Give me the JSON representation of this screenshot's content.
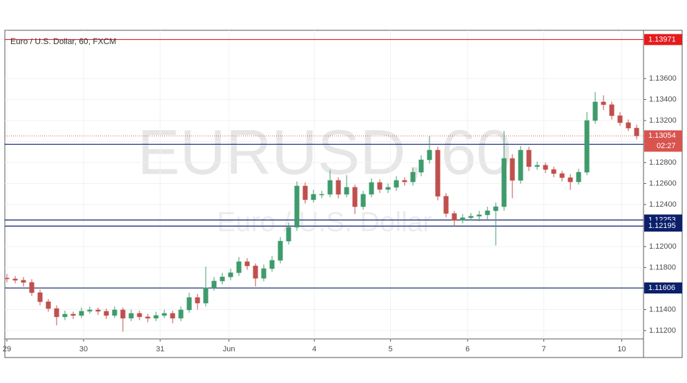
{
  "chart_data": {
    "type": "candlestick",
    "title": "Euro / U.S. Dollar, 60, FXCM",
    "watermark": {
      "symbol": "EURUSD, 60",
      "description": "Euro / U.S. Dollar"
    },
    "x": [
      0,
      1,
      2,
      3,
      4,
      5,
      6,
      7,
      8,
      9,
      10,
      11,
      12,
      13,
      14,
      15,
      16,
      17,
      18,
      19,
      20,
      21,
      22,
      23,
      24,
      25,
      26,
      27,
      28,
      29,
      30,
      31,
      32,
      33,
      34,
      35,
      36,
      37,
      38,
      39,
      40,
      41,
      42,
      43,
      44,
      45,
      46,
      47,
      48,
      49,
      50,
      51,
      52,
      53,
      54,
      55,
      56,
      57,
      58,
      59,
      60,
      61,
      62,
      63,
      64,
      65,
      66,
      67,
      68,
      69,
      70,
      71,
      72,
      73,
      74,
      75,
      76
    ],
    "open": [
      1.117,
      1.11692,
      1.11679,
      1.11659,
      1.11561,
      1.11475,
      1.1141,
      1.11331,
      1.11357,
      1.11344,
      1.11384,
      1.11397,
      1.11384,
      1.11344,
      1.11397,
      1.11318,
      1.11364,
      1.11331,
      1.11318,
      1.11344,
      1.11364,
      1.11318,
      1.11397,
      1.11515,
      1.11462,
      1.11607,
      1.11672,
      1.11711,
      1.11751,
      1.11856,
      1.11816,
      1.11698,
      1.1179,
      1.11869,
      1.12052,
      1.12184,
      1.12577,
      1.12446,
      1.12498,
      1.12498,
      1.1263,
      1.12498,
      1.12564,
      1.1238,
      1.12498,
      1.1261,
      1.12544,
      1.12564,
      1.1263,
      1.12616,
      1.12708,
      1.12826,
      1.12918,
      1.12479,
      1.12315,
      1.12249,
      1.12275,
      1.12289,
      1.12302,
      1.12341,
      1.1238,
      1.12839,
      1.1263,
      1.12918,
      1.12761,
      1.12774,
      1.12734,
      1.12695,
      1.12656,
      1.12616,
      1.12708,
      1.132,
      1.13377,
      1.13351,
      1.13246,
      1.1318,
      1.13128
    ],
    "high": [
      1.1174,
      1.1172,
      1.1171,
      1.1169,
      1.1159,
      1.115,
      1.1144,
      1.1139,
      1.1138,
      1.1142,
      1.1143,
      1.1142,
      1.1141,
      1.1143,
      1.1142,
      1.114,
      1.1139,
      1.1136,
      1.1138,
      1.114,
      1.1139,
      1.1143,
      1.1156,
      1.1155,
      1.1181,
      1.1171,
      1.1175,
      1.1179,
      1.119,
      1.1189,
      1.1184,
      1.1183,
      1.1191,
      1.1209,
      1.1223,
      1.1262,
      1.1261,
      1.1254,
      1.1253,
      1.1273,
      1.1266,
      1.1268,
      1.1259,
      1.1253,
      1.1265,
      1.1264,
      1.126,
      1.1267,
      1.1266,
      1.1275,
      1.1287,
      1.1305,
      1.1295,
      1.1251,
      1.1234,
      1.1231,
      1.1232,
      1.1234,
      1.1238,
      1.1242,
      1.131,
      1.1288,
      1.1296,
      1.1295,
      1.1281,
      1.128,
      1.1276,
      1.1272,
      1.1269,
      1.1274,
      1.1328,
      1.1347,
      1.1344,
      1.1338,
      1.1328,
      1.1321,
      1.1316
    ],
    "low": [
      1.1166,
      1.1165,
      1.1162,
      1.1153,
      1.1144,
      1.1138,
      1.1125,
      1.113,
      1.1131,
      1.1132,
      1.1136,
      1.1135,
      1.1131,
      1.1132,
      1.1119,
      1.1129,
      1.113,
      1.1128,
      1.1129,
      1.1132,
      1.1127,
      1.1129,
      1.1137,
      1.114,
      1.1143,
      1.1158,
      1.1164,
      1.1168,
      1.1172,
      1.1178,
      1.1162,
      1.1167,
      1.1176,
      1.1184,
      1.1202,
      1.1215,
      1.1241,
      1.1242,
      1.1246,
      1.1247,
      1.1246,
      1.1247,
      1.1231,
      1.1235,
      1.1247,
      1.1251,
      1.1251,
      1.1253,
      1.1258,
      1.1258,
      1.1267,
      1.1279,
      1.1244,
      1.1228,
      1.1219,
      1.1222,
      1.1225,
      1.1224,
      1.1226,
      1.1201,
      1.1234,
      1.1246,
      1.126,
      1.1272,
      1.1273,
      1.127,
      1.1266,
      1.1262,
      1.1254,
      1.1259,
      1.1268,
      1.1317,
      1.133,
      1.1321,
      1.1315,
      1.131,
      1.1302
    ],
    "close": [
      1.11692,
      1.11679,
      1.11659,
      1.11561,
      1.11475,
      1.1141,
      1.11331,
      1.11357,
      1.11344,
      1.11384,
      1.11397,
      1.11384,
      1.11344,
      1.11397,
      1.11318,
      1.11364,
      1.11331,
      1.11318,
      1.11344,
      1.11364,
      1.11318,
      1.11397,
      1.11515,
      1.11462,
      1.11607,
      1.11672,
      1.11711,
      1.11751,
      1.11856,
      1.11816,
      1.11698,
      1.1179,
      1.11869,
      1.12052,
      1.12184,
      1.12577,
      1.12446,
      1.12498,
      1.12498,
      1.1263,
      1.12498,
      1.12564,
      1.1238,
      1.12498,
      1.1261,
      1.12544,
      1.12564,
      1.1263,
      1.12616,
      1.12708,
      1.12826,
      1.12918,
      1.12479,
      1.12315,
      1.12249,
      1.12275,
      1.12289,
      1.12302,
      1.12341,
      1.1238,
      1.12839,
      1.1263,
      1.12918,
      1.12761,
      1.12774,
      1.12734,
      1.12695,
      1.12656,
      1.12616,
      1.12708,
      1.132,
      1.13377,
      1.13351,
      1.13246,
      1.1318,
      1.13128,
      1.13054
    ],
    "up_color": "#3f9b6c",
    "down_color": "#c0504d",
    "xlim": [
      -0.25,
      76.83
    ],
    "ylim": [
      1.11121,
      1.14059
    ],
    "grid": true,
    "xticks": [
      {
        "value": 0,
        "label": "29"
      },
      {
        "value": 9.25,
        "label": "30"
      },
      {
        "value": 18.5,
        "label": "31"
      },
      {
        "value": 26.8,
        "label": "Jun"
      },
      {
        "value": 37.1,
        "label": "4"
      },
      {
        "value": 46.3,
        "label": "5"
      },
      {
        "value": 55.6,
        "label": "6"
      },
      {
        "value": 64.8,
        "label": "7"
      },
      {
        "value": 74.2,
        "label": "10"
      }
    ],
    "yticks": [
      {
        "value": 1.112,
        "label": "1.11200"
      },
      {
        "value": 1.114,
        "label": "1.11400"
      },
      {
        "value": 1.116,
        "label": "1.11600"
      },
      {
        "value": 1.118,
        "label": "1.11800"
      },
      {
        "value": 1.12,
        "label": "1.12000"
      },
      {
        "value": 1.122,
        "label": "1.12200"
      },
      {
        "value": 1.124,
        "label": "1.12400"
      },
      {
        "value": 1.126,
        "label": "1.12600"
      },
      {
        "value": 1.128,
        "label": "1.12800"
      },
      {
        "value": 1.13,
        "label": "1.13000"
      },
      {
        "value": 1.132,
        "label": "1.13200"
      },
      {
        "value": 1.134,
        "label": "1.13400"
      },
      {
        "value": 1.136,
        "label": "1.13600"
      }
    ],
    "levels": [
      {
        "value": 1.13971,
        "color": "#e41a1c"
      },
      {
        "value": 1.12974,
        "color": "#0b1f6b"
      },
      {
        "value": 1.12253,
        "color": "#0b1f6b"
      },
      {
        "value": 1.12195,
        "color": "#0b1f6b"
      },
      {
        "value": 1.11606,
        "color": "#0b1f6b"
      }
    ],
    "current_price": {
      "value": 1.13054,
      "countdown": "02:27",
      "color": "#d9534f"
    }
  }
}
